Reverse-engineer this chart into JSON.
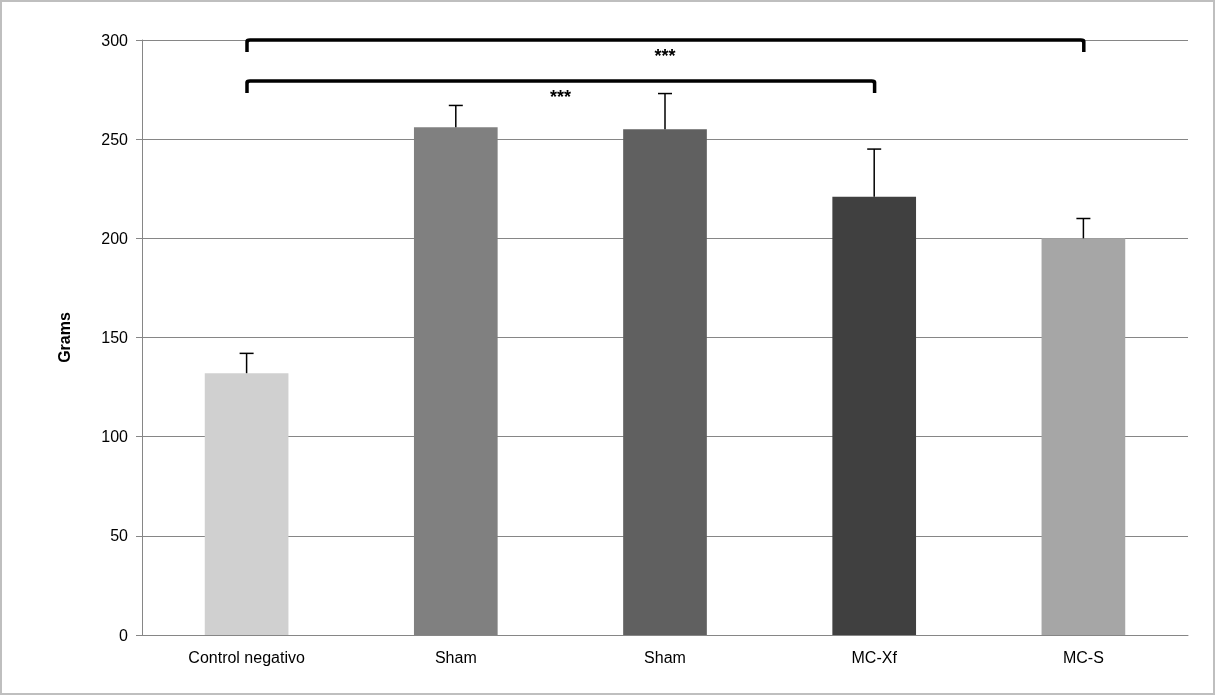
{
  "chart_data": {
    "type": "bar",
    "ylabel": "Grams",
    "categories": [
      "Control negativo",
      "Sham",
      "Sham",
      "MC-Xf",
      "MC-S"
    ],
    "values": [
      132,
      256,
      255,
      221,
      200
    ],
    "errors": [
      10,
      11,
      18,
      24,
      10
    ],
    "colors": [
      "#d0d0d0",
      "#808080",
      "#606060",
      "#404040",
      "#a6a6a6"
    ],
    "ylim": [
      0,
      300
    ],
    "yticks": [
      0,
      50,
      100,
      150,
      200,
      250,
      300
    ],
    "grid": "y",
    "annotations": [
      "***",
      "***"
    ]
  }
}
